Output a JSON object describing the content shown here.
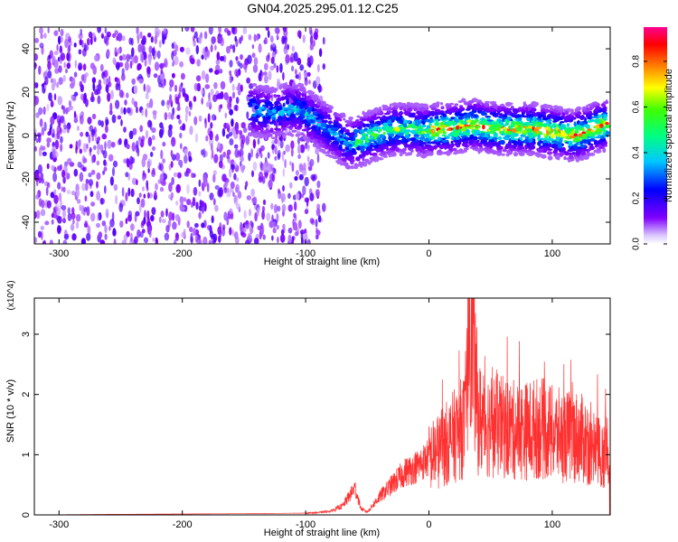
{
  "title": "GN04.2025.295.01.12.C25",
  "chart_data": [
    {
      "type": "heatmap",
      "xlabel": "Height of straight line (km)",
      "ylabel": "Frequency (Hz)",
      "xlim": [
        -320,
        147
      ],
      "ylim": [
        -50,
        50
      ],
      "xticks": [
        -300,
        -200,
        -100,
        0,
        100
      ],
      "yticks": [
        -40,
        -20,
        0,
        20,
        40
      ],
      "colorbar": {
        "label": "Normalized spectral amplitude",
        "range": [
          0,
          0.95
        ],
        "ticks": [
          0.0,
          0.2,
          0.4,
          0.6,
          0.8
        ],
        "colors": [
          "#e0d0ff",
          "#8000ff",
          "#0000ff",
          "#00ffff",
          "#00ff00",
          "#ffff00",
          "#ff8000",
          "#ff0000",
          "#ff00a0"
        ]
      },
      "ridge_frequency": {
        "x": [
          -145,
          -135,
          -125,
          -115,
          -105,
          -95,
          -85,
          -75,
          -65,
          -55,
          -45,
          -35,
          -25,
          -15,
          -5,
          5,
          15,
          25,
          35,
          45,
          55,
          65,
          75,
          85,
          95,
          105,
          115,
          125,
          135,
          145
        ],
        "y": [
          12,
          11,
          10,
          12,
          12,
          8,
          4,
          0,
          -4,
          -2,
          0,
          2,
          3,
          3,
          2,
          3,
          3,
          4,
          5,
          4,
          3,
          3,
          3,
          3,
          2,
          1,
          0,
          1,
          4,
          5
        ]
      },
      "noise_region": {
        "x": [
          -320,
          -100
        ],
        "y": [
          -50,
          50
        ]
      }
    },
    {
      "type": "line",
      "xlabel": "Height of straight line (km)",
      "ylabel": "SNR (10 * v/v)",
      "multiplier": "(x10^4)",
      "xlim": [
        -320,
        147
      ],
      "ylim": [
        0,
        3.6
      ],
      "xticks": [
        -300,
        -200,
        -100,
        0,
        100
      ],
      "yticks": [
        0,
        1,
        2,
        3
      ],
      "color": "#ff3030",
      "series": [
        {
          "x": [
            -320,
            -250,
            -150,
            -100,
            -90,
            -80,
            -70,
            -65,
            -60,
            -55,
            -50,
            -40,
            -30,
            -20,
            -10,
            0,
            10,
            20,
            30,
            33,
            40,
            50,
            60,
            70,
            80,
            90,
            100,
            110,
            120,
            130,
            140,
            147
          ],
          "y": [
            0.0,
            0.01,
            0.02,
            0.03,
            0.04,
            0.06,
            0.15,
            0.3,
            0.45,
            0.1,
            0.05,
            0.3,
            0.5,
            0.7,
            0.8,
            0.95,
            1.1,
            1.3,
            1.5,
            3.6,
            1.6,
            1.5,
            1.45,
            1.4,
            1.4,
            1.45,
            1.35,
            1.3,
            1.3,
            1.2,
            1.0,
            1.1
          ]
        }
      ]
    }
  ]
}
